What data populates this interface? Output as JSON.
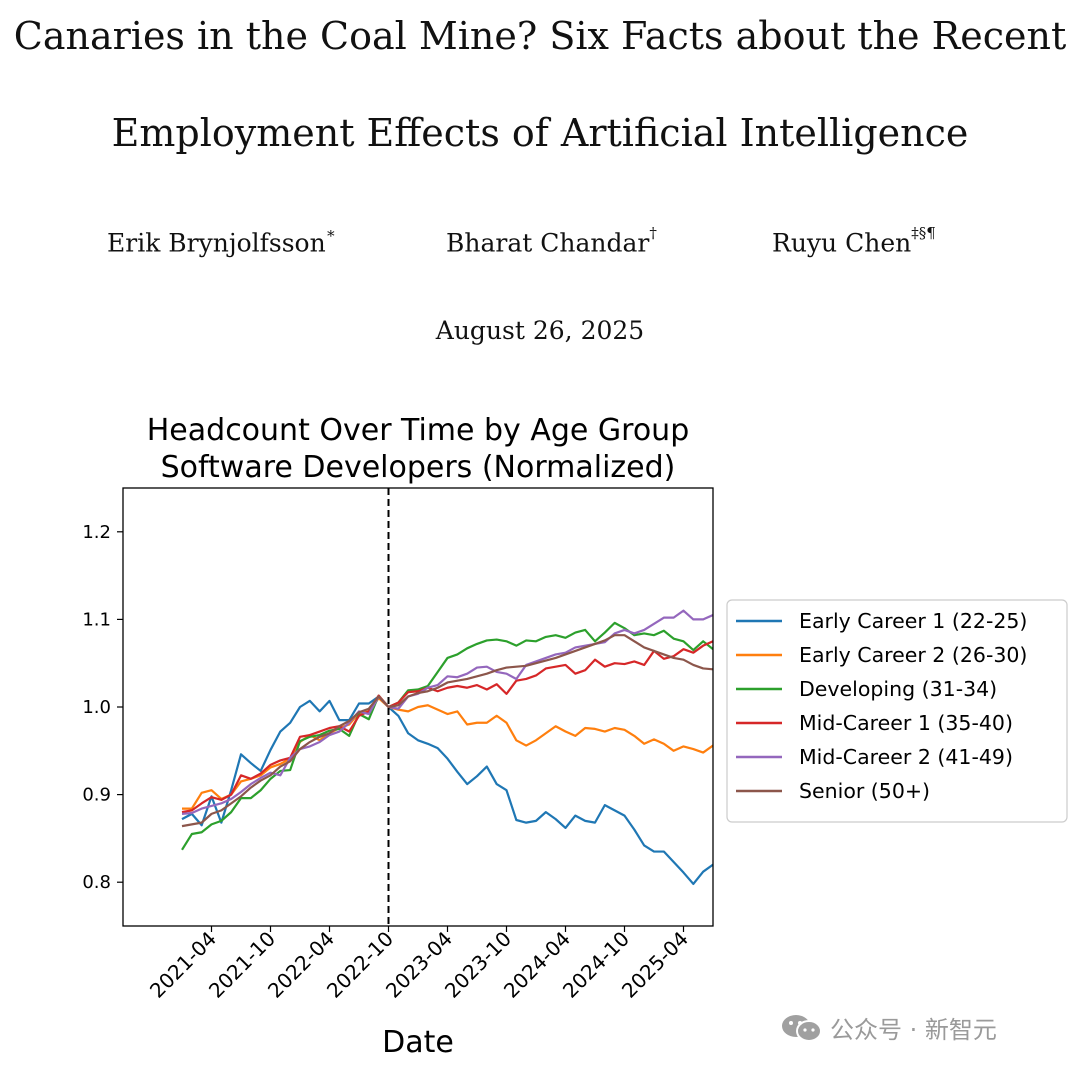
{
  "paper": {
    "title_line1": "Canaries in the Coal Mine? Six Facts about the Recent",
    "title_line2": "Employment Effects of Artificial Intelligence",
    "authors": [
      {
        "name": "Erik Brynjolfsson",
        "marks": "∗"
      },
      {
        "name": "Bharat Chandar",
        "marks": "†"
      },
      {
        "name": "Ruyu Chen",
        "marks": "‡§¶"
      }
    ],
    "date": "August 26, 2025"
  },
  "watermark": {
    "text": "公众号 · 新智元",
    "icon": "wechat-icon"
  },
  "chart_data": {
    "type": "line",
    "title": "Headcount Over Time by Age Group",
    "subtitle": "Software Developers (Normalized)",
    "xlabel": "Date",
    "ylabel": "",
    "ylim": [
      0.75,
      1.25
    ],
    "xlim": [
      -6,
      54
    ],
    "yticks": [
      0.8,
      0.9,
      1.0,
      1.1,
      1.2
    ],
    "ytick_labels": [
      "0.8",
      "0.9",
      "1.0",
      "1.1",
      "1.2"
    ],
    "xtick_months": [
      3,
      9,
      15,
      21,
      27,
      33,
      39,
      45,
      51
    ],
    "xtick_labels": [
      "2021-04",
      "2021-10",
      "2022-04",
      "2022-10",
      "2023-04",
      "2023-10",
      "2024-04",
      "2024-10",
      "2025-04"
    ],
    "x_start": "2021-01",
    "reference_line": {
      "month": 21,
      "style": "dashed"
    },
    "legend_position": "right outside",
    "series": [
      {
        "name": "Early Career 1 (22-25)",
        "color": "#1f77b4",
        "values": [
          0.872,
          0.878,
          0.865,
          0.898,
          0.868,
          0.905,
          0.946,
          0.936,
          0.927,
          0.951,
          0.972,
          0.982,
          1.0,
          1.007,
          0.995,
          1.007,
          0.985,
          0.985,
          1.004,
          1.004,
          1.012,
          1.0,
          0.99,
          0.97,
          0.962,
          0.958,
          0.953,
          0.941,
          0.926,
          0.912,
          0.921,
          0.932,
          0.912,
          0.905,
          0.871,
          0.868,
          0.87,
          0.88,
          0.872,
          0.862,
          0.876,
          0.87,
          0.868,
          0.888,
          0.882,
          0.876,
          0.86,
          0.842,
          0.835,
          0.835,
          0.823,
          0.811,
          0.798,
          0.812,
          0.82
        ]
      },
      {
        "name": "Early Career 2 (26-30)",
        "color": "#ff7f0e",
        "values": [
          0.884,
          0.884,
          0.902,
          0.905,
          0.895,
          0.9,
          0.915,
          0.918,
          0.922,
          0.931,
          0.935,
          0.941,
          0.96,
          0.968,
          0.962,
          0.97,
          0.976,
          0.98,
          0.993,
          0.995,
          1.01,
          1.0,
          0.997,
          0.995,
          1.0,
          1.002,
          0.997,
          0.992,
          0.995,
          0.98,
          0.982,
          0.982,
          0.99,
          0.982,
          0.962,
          0.956,
          0.962,
          0.97,
          0.978,
          0.972,
          0.967,
          0.976,
          0.975,
          0.972,
          0.976,
          0.974,
          0.967,
          0.958,
          0.963,
          0.958,
          0.95,
          0.955,
          0.952,
          0.948,
          0.956
        ]
      },
      {
        "name": "Developing (31-34)",
        "color": "#2ca02c",
        "values": [
          0.837,
          0.855,
          0.857,
          0.866,
          0.87,
          0.88,
          0.896,
          0.896,
          0.905,
          0.918,
          0.927,
          0.928,
          0.961,
          0.966,
          0.968,
          0.973,
          0.975,
          0.967,
          0.992,
          0.986,
          1.013,
          1.0,
          1.005,
          1.019,
          1.02,
          1.024,
          1.04,
          1.056,
          1.06,
          1.067,
          1.072,
          1.076,
          1.077,
          1.075,
          1.07,
          1.076,
          1.075,
          1.08,
          1.082,
          1.079,
          1.085,
          1.088,
          1.075,
          1.085,
          1.096,
          1.09,
          1.082,
          1.084,
          1.082,
          1.087,
          1.078,
          1.075,
          1.065,
          1.075,
          1.066
        ]
      },
      {
        "name": "Mid-Career 1 (35-40)",
        "color": "#d62728",
        "values": [
          0.88,
          0.882,
          0.89,
          0.897,
          0.894,
          0.9,
          0.922,
          0.918,
          0.924,
          0.934,
          0.939,
          0.942,
          0.966,
          0.968,
          0.972,
          0.976,
          0.978,
          0.972,
          0.99,
          0.995,
          1.013,
          1.0,
          1.005,
          1.017,
          1.018,
          1.022,
          1.018,
          1.022,
          1.024,
          1.022,
          1.025,
          1.02,
          1.026,
          1.015,
          1.03,
          1.032,
          1.036,
          1.044,
          1.046,
          1.048,
          1.038,
          1.042,
          1.054,
          1.046,
          1.05,
          1.049,
          1.052,
          1.048,
          1.064,
          1.055,
          1.058,
          1.066,
          1.062,
          1.07,
          1.075
        ]
      },
      {
        "name": "Mid-Career 2 (41-49)",
        "color": "#9467bd",
        "values": [
          0.878,
          0.879,
          0.884,
          0.887,
          0.89,
          0.895,
          0.903,
          0.912,
          0.919,
          0.925,
          0.922,
          0.942,
          0.952,
          0.955,
          0.96,
          0.968,
          0.972,
          0.982,
          0.995,
          0.992,
          1.012,
          1.0,
          0.998,
          1.012,
          1.015,
          1.022,
          1.025,
          1.035,
          1.034,
          1.038,
          1.045,
          1.046,
          1.04,
          1.038,
          1.032,
          1.048,
          1.052,
          1.056,
          1.06,
          1.062,
          1.068,
          1.07,
          1.072,
          1.074,
          1.084,
          1.088,
          1.084,
          1.088,
          1.095,
          1.102,
          1.102,
          1.11,
          1.1,
          1.1,
          1.105
        ]
      },
      {
        "name": "Senior (50+)",
        "color": "#8c564b",
        "values": [
          0.864,
          0.866,
          0.868,
          0.878,
          0.882,
          0.89,
          0.898,
          0.908,
          0.916,
          0.922,
          0.932,
          0.938,
          0.952,
          0.96,
          0.966,
          0.97,
          0.978,
          0.984,
          0.994,
          0.998,
          1.012,
          1.0,
          1.002,
          1.012,
          1.016,
          1.018,
          1.022,
          1.028,
          1.03,
          1.032,
          1.035,
          1.038,
          1.042,
          1.045,
          1.046,
          1.047,
          1.05,
          1.053,
          1.056,
          1.06,
          1.064,
          1.068,
          1.072,
          1.076,
          1.082,
          1.082,
          1.075,
          1.068,
          1.064,
          1.06,
          1.056,
          1.054,
          1.048,
          1.044,
          1.043
        ]
      }
    ]
  }
}
